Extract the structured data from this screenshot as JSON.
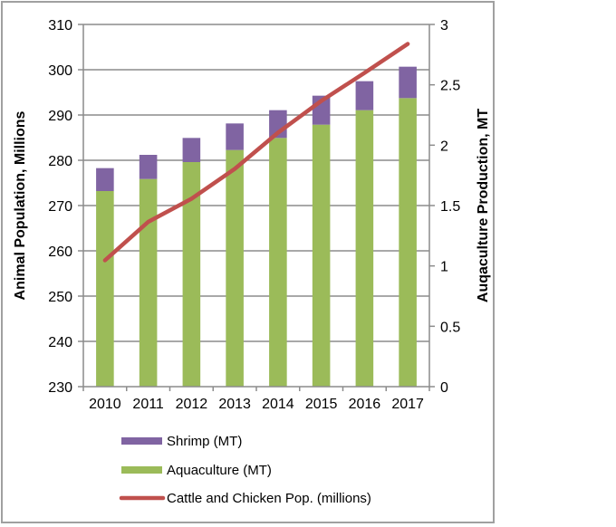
{
  "chart_data": {
    "type": "bar",
    "stacked": true,
    "title": "",
    "categories": [
      "2010",
      "2011",
      "2012",
      "2013",
      "2014",
      "2015",
      "2016",
      "2017"
    ],
    "xlabel": "",
    "ylabel_left": "Animal Population, Millions",
    "ylabel_right": "Auqaculture Production, MT",
    "ylim_left": [
      230,
      310
    ],
    "yticks_left": [
      230,
      240,
      250,
      260,
      270,
      280,
      290,
      300,
      310
    ],
    "ylim_right": [
      0,
      3
    ],
    "yticks_right": [
      "0",
      "0.5",
      "1",
      "1.5",
      "2",
      "2.5",
      "3"
    ],
    "grid": true,
    "series": [
      {
        "name": "Aquaculture (MT)",
        "type": "bar",
        "axis": "right",
        "color": "#9bbb59",
        "values": [
          1.62,
          1.72,
          1.86,
          1.96,
          2.06,
          2.17,
          2.29,
          2.39
        ]
      },
      {
        "name": "Shrimp (MT)",
        "type": "bar",
        "axis": "right",
        "color": "#8064a2",
        "values": [
          0.19,
          0.2,
          0.2,
          0.22,
          0.23,
          0.24,
          0.24,
          0.26
        ]
      },
      {
        "name": "Cattle and Chicken Pop. (millions)",
        "type": "line",
        "axis": "left",
        "color": "#c0504d",
        "values": [
          257.9,
          266.4,
          271.5,
          278.1,
          286.1,
          293.1,
          299.3,
          305.7
        ]
      }
    ],
    "legend": {
      "placement": "bottom",
      "entries": [
        {
          "label": "Shrimp (MT)",
          "color": "#8064a2",
          "kind": "bar"
        },
        {
          "label": "Aquaculture (MT)",
          "color": "#9bbb59",
          "kind": "bar"
        },
        {
          "label": "Cattle and Chicken Pop. (millions)",
          "color": "#c0504d",
          "kind": "line"
        }
      ]
    }
  }
}
